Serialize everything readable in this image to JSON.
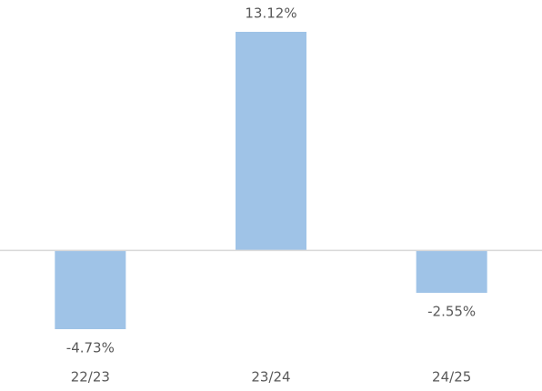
{
  "chart_data": {
    "type": "bar",
    "categories": [
      "22/23",
      "23/24",
      "24/25"
    ],
    "values": [
      -4.73,
      13.12,
      -2.55
    ],
    "value_labels": [
      "-4.73%",
      "13.12%",
      "-2.55%"
    ],
    "color": "#9fc3e7"
  }
}
